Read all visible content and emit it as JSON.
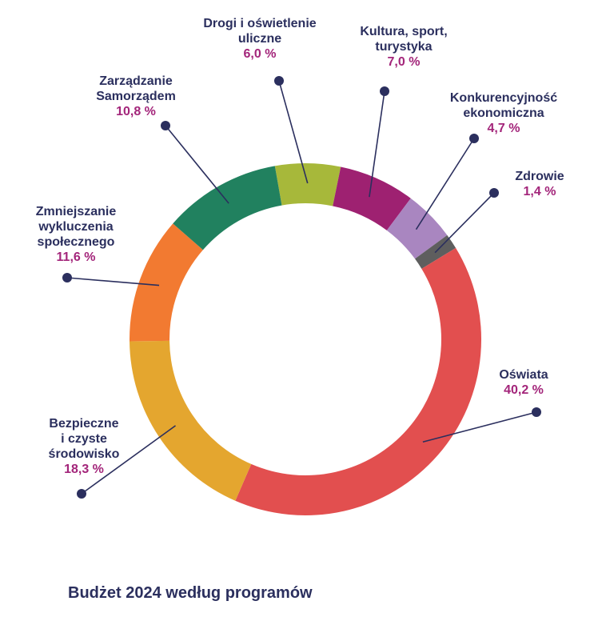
{
  "chart_data": {
    "type": "pie",
    "donut": true,
    "title": "Budżet 2024 według programów",
    "start_angle_deg": 350,
    "direction": "clockwise",
    "series": [
      {
        "key": "drogi",
        "name_lines": [
          "Drogi i oświetlenie",
          "uliczne"
        ],
        "label": "6,0 %",
        "value": 6.0,
        "color": "#a7b83a"
      },
      {
        "key": "kultura",
        "name_lines": [
          "Kultura, sport,",
          "turystyka"
        ],
        "label": "7,0 %",
        "value": 7.0,
        "color": "#9e2171"
      },
      {
        "key": "konkurencyjnosc",
        "name_lines": [
          "Konkurencyjność",
          "ekonomiczna"
        ],
        "label": "4,7 %",
        "value": 4.7,
        "color": "#a986c0"
      },
      {
        "key": "zdrowie",
        "name_lines": [
          "Zdrowie"
        ],
        "label": "1,4 %",
        "value": 1.4,
        "color": "#5e5e5e"
      },
      {
        "key": "oswiata",
        "name_lines": [
          "Oświata"
        ],
        "label": "40,2 %",
        "value": 40.2,
        "color": "#e24f4f"
      },
      {
        "key": "bezpieczne",
        "name_lines": [
          "Bezpieczne",
          "i czyste",
          "środowisko"
        ],
        "label": "18,3 %",
        "value": 18.3,
        "color": "#e4a62f"
      },
      {
        "key": "zmniejszanie",
        "name_lines": [
          "Zmniejszanie",
          "wykluczenia",
          "społecznego"
        ],
        "label": "11,6 %",
        "value": 11.6,
        "color": "#f27a31"
      },
      {
        "key": "zarzadzanie",
        "name_lines": [
          "Zarządzanie",
          "Samorządem"
        ],
        "label": "10,8 %",
        "value": 10.8,
        "color": "#21815f"
      }
    ]
  },
  "colors": {
    "label_name": "#2b2f5e",
    "label_value": "#a3257a",
    "leader_line": "#2b2f5e"
  }
}
